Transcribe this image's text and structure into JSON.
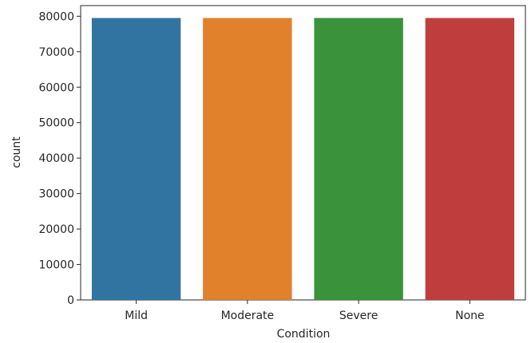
{
  "chart_data": {
    "type": "bar",
    "title": "",
    "xlabel": "Condition",
    "ylabel": "count",
    "categories": [
      "Mild",
      "Moderate",
      "Severe",
      "None"
    ],
    "values": [
      79500,
      79500,
      79500,
      79500
    ],
    "colors": [
      "#3274a1",
      "#e1812c",
      "#3a923a",
      "#c03d3e"
    ],
    "ylim": [
      0,
      83000
    ],
    "yticks": [
      0,
      10000,
      20000,
      30000,
      40000,
      50000,
      60000,
      70000,
      80000
    ],
    "grid": false,
    "legend": "none"
  }
}
